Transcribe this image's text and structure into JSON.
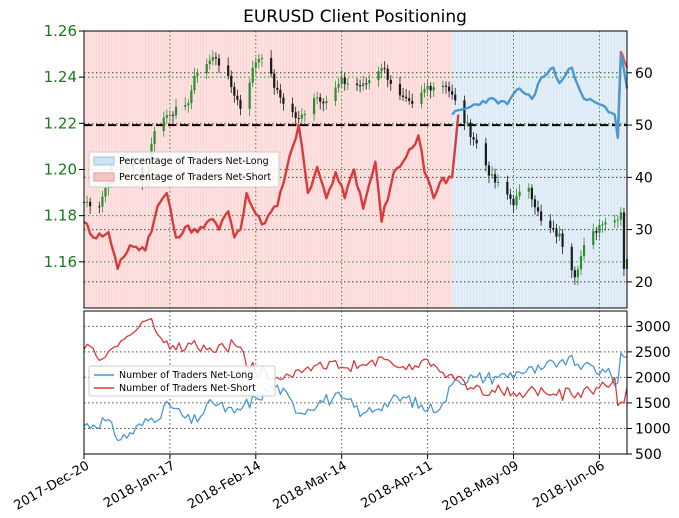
{
  "chart_data": [
    {
      "type": "candlestick+line",
      "title": "EURUSD Client Positioning",
      "x_range": [
        "2017-12-20",
        "2018-06-15"
      ],
      "ylim_left": [
        1.14,
        1.26
      ],
      "yticks_left": [
        "1.16",
        "1.18",
        "1.20",
        "1.22",
        "1.24",
        "1.26"
      ],
      "ylim_right": [
        15,
        68
      ],
      "yticks_right": [
        "20",
        "30",
        "40",
        "50",
        "60"
      ],
      "reference_line": 50,
      "legend_position": "left",
      "legend": [
        "Percentage of Traders Net-Long",
        "Percentage of Traders Net-Short"
      ],
      "colors": {
        "long": "#4a98cf",
        "short": "#d93b3b",
        "candle": "#1a1a1a",
        "candle_up": "#2e8b2e",
        "short_fill": "#fde0e0",
        "long_fill": "#e3eef8"
      },
      "price_anchors": [
        [
          "2017-12-20",
          1.186
        ],
        [
          "2017-12-25",
          1.185
        ],
        [
          "2017-12-29",
          1.199
        ],
        [
          "2018-01-03",
          1.203
        ],
        [
          "2018-01-09",
          1.195
        ],
        [
          "2018-01-12",
          1.218
        ],
        [
          "2018-01-17",
          1.225
        ],
        [
          "2018-01-22",
          1.226
        ],
        [
          "2018-01-26",
          1.243
        ],
        [
          "2018-02-01",
          1.249
        ],
        [
          "2018-02-06",
          1.236
        ],
        [
          "2018-02-09",
          1.227
        ],
        [
          "2018-02-14",
          1.247
        ],
        [
          "2018-02-16",
          1.25
        ],
        [
          "2018-02-21",
          1.233
        ],
        [
          "2018-02-28",
          1.221
        ],
        [
          "2018-03-05",
          1.232
        ],
        [
          "2018-03-09",
          1.23
        ],
        [
          "2018-03-14",
          1.238
        ],
        [
          "2018-03-21",
          1.236
        ],
        [
          "2018-03-27",
          1.245
        ],
        [
          "2018-04-02",
          1.231
        ],
        [
          "2018-04-06",
          1.227
        ],
        [
          "2018-04-11",
          1.236
        ],
        [
          "2018-04-17",
          1.237
        ],
        [
          "2018-04-23",
          1.221
        ],
        [
          "2018-04-27",
          1.211
        ],
        [
          "2018-05-02",
          1.196
        ],
        [
          "2018-05-09",
          1.186
        ],
        [
          "2018-05-14",
          1.193
        ],
        [
          "2018-05-18",
          1.177
        ],
        [
          "2018-05-24",
          1.171
        ],
        [
          "2018-05-29",
          1.155
        ],
        [
          "2018-06-01",
          1.166
        ],
        [
          "2018-06-07",
          1.178
        ],
        [
          "2018-06-11",
          1.178
        ],
        [
          "2018-06-13",
          1.182
        ],
        [
          "2018-06-14",
          1.158
        ],
        [
          "2018-06-15",
          1.162
        ]
      ],
      "net_long_pct_anchors": [
        [
          "2018-04-19",
          52.0
        ],
        [
          "2018-04-25",
          53.5
        ],
        [
          "2018-05-01",
          55.0
        ],
        [
          "2018-05-07",
          54.0
        ],
        [
          "2018-05-11",
          57.0
        ],
        [
          "2018-05-15",
          55.0
        ],
        [
          "2018-05-18",
          59.0
        ],
        [
          "2018-05-22",
          61.0
        ],
        [
          "2018-05-24",
          58.0
        ],
        [
          "2018-05-28",
          61.0
        ],
        [
          "2018-06-01",
          55.0
        ],
        [
          "2018-06-06",
          54.0
        ],
        [
          "2018-06-11",
          52.0
        ],
        [
          "2018-06-12",
          47.5
        ],
        [
          "2018-06-13",
          63.5
        ],
        [
          "2018-06-15",
          57.0
        ]
      ],
      "net_short_pct_anchors": [
        [
          "2017-12-20",
          31.5
        ],
        [
          "2017-12-23",
          28.5
        ],
        [
          "2017-12-28",
          29.5
        ],
        [
          "2017-12-31",
          22.5
        ],
        [
          "2018-01-04",
          27.0
        ],
        [
          "2018-01-09",
          26.0
        ],
        [
          "2018-01-13",
          34.5
        ],
        [
          "2018-01-16",
          37.0
        ],
        [
          "2018-01-19",
          28.5
        ],
        [
          "2018-01-22",
          30.5
        ],
        [
          "2018-01-26",
          29.5
        ],
        [
          "2018-01-31",
          32.0
        ],
        [
          "2018-02-02",
          30.0
        ],
        [
          "2018-02-05",
          33.5
        ],
        [
          "2018-02-07",
          28.5
        ],
        [
          "2018-02-09",
          30.0
        ],
        [
          "2018-02-11",
          37.0
        ],
        [
          "2018-02-14",
          33.0
        ],
        [
          "2018-02-16",
          31.0
        ],
        [
          "2018-02-21",
          34.5
        ],
        [
          "2018-02-25",
          44.0
        ],
        [
          "2018-02-28",
          50.0
        ],
        [
          "2018-03-03",
          37.0
        ],
        [
          "2018-03-06",
          42.0
        ],
        [
          "2018-03-09",
          36.0
        ],
        [
          "2018-03-12",
          41.0
        ],
        [
          "2018-03-15",
          36.0
        ],
        [
          "2018-03-18",
          41.5
        ],
        [
          "2018-03-21",
          34.0
        ],
        [
          "2018-03-25",
          43.0
        ],
        [
          "2018-03-27",
          31.5
        ],
        [
          "2018-03-31",
          41.0
        ],
        [
          "2018-04-03",
          43.0
        ],
        [
          "2018-04-08",
          48.0
        ],
        [
          "2018-04-10",
          41.0
        ],
        [
          "2018-04-13",
          36.0
        ],
        [
          "2018-04-15",
          39.0
        ],
        [
          "2018-04-19",
          40.0
        ],
        [
          "2018-04-21",
          52.0
        ]
      ],
      "net_short_pct_tail": [
        [
          "2018-06-12",
          47.5
        ],
        [
          "2018-06-13",
          64.0
        ],
        [
          "2018-06-15",
          61.0
        ]
      ]
    },
    {
      "type": "line",
      "ylim": [
        500,
        3300
      ],
      "yticks": [
        "500",
        "1000",
        "1500",
        "2000",
        "2500",
        "3000"
      ],
      "legend_position": "left",
      "series": [
        {
          "name": "Number of Traders Net-Long",
          "color": "#4a98cf",
          "anchors": [
            [
              "2017-12-20",
              1050
            ],
            [
              "2017-12-27",
              1150
            ],
            [
              "2018-01-01",
              780
            ],
            [
              "2018-01-10",
              1150
            ],
            [
              "2018-01-17",
              1450
            ],
            [
              "2018-01-24",
              1100
            ],
            [
              "2018-01-31",
              1500
            ],
            [
              "2018-02-07",
              1300
            ],
            [
              "2018-02-14",
              1600
            ],
            [
              "2018-02-21",
              1850
            ],
            [
              "2018-02-28",
              1300
            ],
            [
              "2018-03-07",
              1550
            ],
            [
              "2018-03-14",
              1600
            ],
            [
              "2018-03-21",
              1300
            ],
            [
              "2018-03-28",
              1500
            ],
            [
              "2018-04-04",
              1600
            ],
            [
              "2018-04-11",
              1350
            ],
            [
              "2018-04-16",
              1500
            ],
            [
              "2018-04-20",
              1950
            ],
            [
              "2018-04-27",
              2000
            ],
            [
              "2018-05-04",
              2000
            ],
            [
              "2018-05-11",
              2100
            ],
            [
              "2018-05-18",
              2150
            ],
            [
              "2018-05-25",
              2350
            ],
            [
              "2018-06-01",
              2250
            ],
            [
              "2018-06-08",
              2100
            ],
            [
              "2018-06-12",
              1900
            ],
            [
              "2018-06-13",
              2480
            ],
            [
              "2018-06-15",
              2400
            ]
          ]
        },
        {
          "name": "Number of Traders Net-Short",
          "color": "#d93b3b",
          "anchors": [
            [
              "2017-12-20",
              2550
            ],
            [
              "2017-12-27",
              2400
            ],
            [
              "2018-01-03",
              2800
            ],
            [
              "2018-01-10",
              3130
            ],
            [
              "2018-01-17",
              2550
            ],
            [
              "2018-01-24",
              2650
            ],
            [
              "2018-01-31",
              2500
            ],
            [
              "2018-02-07",
              2650
            ],
            [
              "2018-02-14",
              2100
            ],
            [
              "2018-02-21",
              2000
            ],
            [
              "2018-02-28",
              2150
            ],
            [
              "2018-03-07",
              2300
            ],
            [
              "2018-03-14",
              2200
            ],
            [
              "2018-03-21",
              2250
            ],
            [
              "2018-03-28",
              2350
            ],
            [
              "2018-04-04",
              2150
            ],
            [
              "2018-04-11",
              2350
            ],
            [
              "2018-04-18",
              2050
            ],
            [
              "2018-04-25",
              1800
            ],
            [
              "2018-05-02",
              1750
            ],
            [
              "2018-05-09",
              1700
            ],
            [
              "2018-05-16",
              1750
            ],
            [
              "2018-05-23",
              1650
            ],
            [
              "2018-05-30",
              1700
            ],
            [
              "2018-06-06",
              1800
            ],
            [
              "2018-06-11",
              2000
            ],
            [
              "2018-06-12",
              1450
            ],
            [
              "2018-06-14",
              1500
            ],
            [
              "2018-06-15",
              1800
            ]
          ]
        }
      ]
    }
  ],
  "x_axis": {
    "ticks": [
      {
        "date": "2017-12-20",
        "label": "2017-Dec-20"
      },
      {
        "date": "2018-01-17",
        "label": "2018-Jan-17"
      },
      {
        "date": "2018-02-14",
        "label": "2018-Feb-14"
      },
      {
        "date": "2018-03-14",
        "label": "2018-Mar-14"
      },
      {
        "date": "2018-04-11",
        "label": "2018-Apr-11"
      },
      {
        "date": "2018-05-09",
        "label": "2018-May-09"
      },
      {
        "date": "2018-06-06",
        "label": "2018-Jun-06"
      }
    ]
  }
}
